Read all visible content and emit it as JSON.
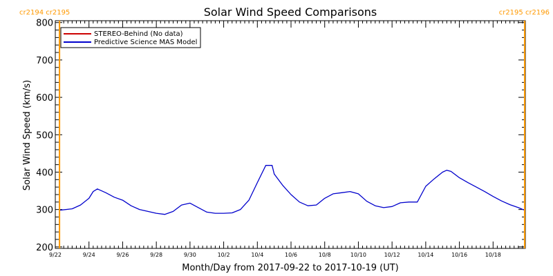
{
  "chart_data": {
    "type": "line",
    "title": "Solar Wind Speed Comparisons",
    "xlabel": "Month/Day from 2017-09-22 to 2017-10-19 (UT)",
    "ylabel": "Solar Wind Speed (km/s)",
    "ylim": [
      196,
      805
    ],
    "xlim": [
      "2017-09-22",
      "2017-10-19T22:00"
    ],
    "y_ticks": [
      200,
      300,
      400,
      500,
      600,
      700,
      800
    ],
    "x_ticks": [
      {
        "date": "2017-09-22",
        "label": "9/22"
      },
      {
        "date": "2017-09-24",
        "label": "9/24"
      },
      {
        "date": "2017-09-26",
        "label": "9/26"
      },
      {
        "date": "2017-09-28",
        "label": "9/28"
      },
      {
        "date": "2017-09-30",
        "label": "9/30"
      },
      {
        "date": "2017-10-02",
        "label": "10/2"
      },
      {
        "date": "2017-10-04",
        "label": "10/4"
      },
      {
        "date": "2017-10-06",
        "label": "10/6"
      },
      {
        "date": "2017-10-08",
        "label": "10/8"
      },
      {
        "date": "2017-10-10",
        "label": "10/10"
      },
      {
        "date": "2017-10-12",
        "label": "10/12"
      },
      {
        "date": "2017-10-14",
        "label": "10/14"
      },
      {
        "date": "2017-10-16",
        "label": "10/16"
      },
      {
        "date": "2017-10-18",
        "label": "10/18"
      }
    ],
    "legend": {
      "placement": "top-left",
      "entries": [
        {
          "label": "STEREO-Behind (No data)",
          "color": "#cc0000"
        },
        {
          "label": "Predictive Science MAS Model",
          "color": "#0000cc"
        }
      ]
    },
    "series": [
      {
        "name": "STEREO-Behind (No data)",
        "color": "#cc0000",
        "x": [],
        "y": []
      },
      {
        "name": "Predictive Science MAS Model",
        "color": "#0000cc",
        "x": [
          "2017-09-22T06:00",
          "2017-09-23",
          "2017-09-23T12:00",
          "2017-09-24",
          "2017-09-24T06:00",
          "2017-09-24T12:00",
          "2017-09-25",
          "2017-09-25T12:00",
          "2017-09-26",
          "2017-09-26T12:00",
          "2017-09-27",
          "2017-09-27T12:00",
          "2017-09-28",
          "2017-09-28T12:00",
          "2017-09-29",
          "2017-09-29T12:00",
          "2017-09-30",
          "2017-09-30T12:00",
          "2017-10-01",
          "2017-10-01T12:00",
          "2017-10-02",
          "2017-10-02T12:00",
          "2017-10-03",
          "2017-10-03T12:00",
          "2017-10-04",
          "2017-10-04T12:00",
          "2017-10-04T21:00",
          "2017-10-05",
          "2017-10-05T12:00",
          "2017-10-06",
          "2017-10-06T12:00",
          "2017-10-07",
          "2017-10-07T12:00",
          "2017-10-08",
          "2017-10-08T12:00",
          "2017-10-09",
          "2017-10-09T12:00",
          "2017-10-10",
          "2017-10-10T12:00",
          "2017-10-11",
          "2017-10-11T12:00",
          "2017-10-12",
          "2017-10-12T12:00",
          "2017-10-13",
          "2017-10-13T12:00",
          "2017-10-14",
          "2017-10-14T12:00",
          "2017-10-15",
          "2017-10-15T06:00",
          "2017-10-15T12:00",
          "2017-10-16",
          "2017-10-16T12:00",
          "2017-10-17",
          "2017-10-17T12:00",
          "2017-10-18",
          "2017-10-18T12:00",
          "2017-10-19",
          "2017-10-19T12:00",
          "2017-10-19T21:00"
        ],
        "y": [
          298,
          302,
          312,
          330,
          348,
          355,
          345,
          333,
          325,
          310,
          300,
          295,
          290,
          287,
          295,
          312,
          317,
          305,
          293,
          290,
          290,
          291,
          300,
          325,
          372,
          418,
          418,
          395,
          365,
          340,
          320,
          310,
          312,
          330,
          342,
          345,
          348,
          342,
          322,
          310,
          305,
          308,
          318,
          320,
          320,
          362,
          382,
          400,
          405,
          402,
          385,
          372,
          360,
          348,
          335,
          323,
          313,
          305,
          298
        ]
      }
    ],
    "annotations": [
      {
        "text": "cr2194 cr2195",
        "color": "#ff9900",
        "at": "2017-09-22T06:00",
        "line": true
      },
      {
        "text": "cr2195 cr2196",
        "color": "#ff9900",
        "at": "2017-10-19T21:00",
        "line": true
      }
    ],
    "grid": false
  }
}
